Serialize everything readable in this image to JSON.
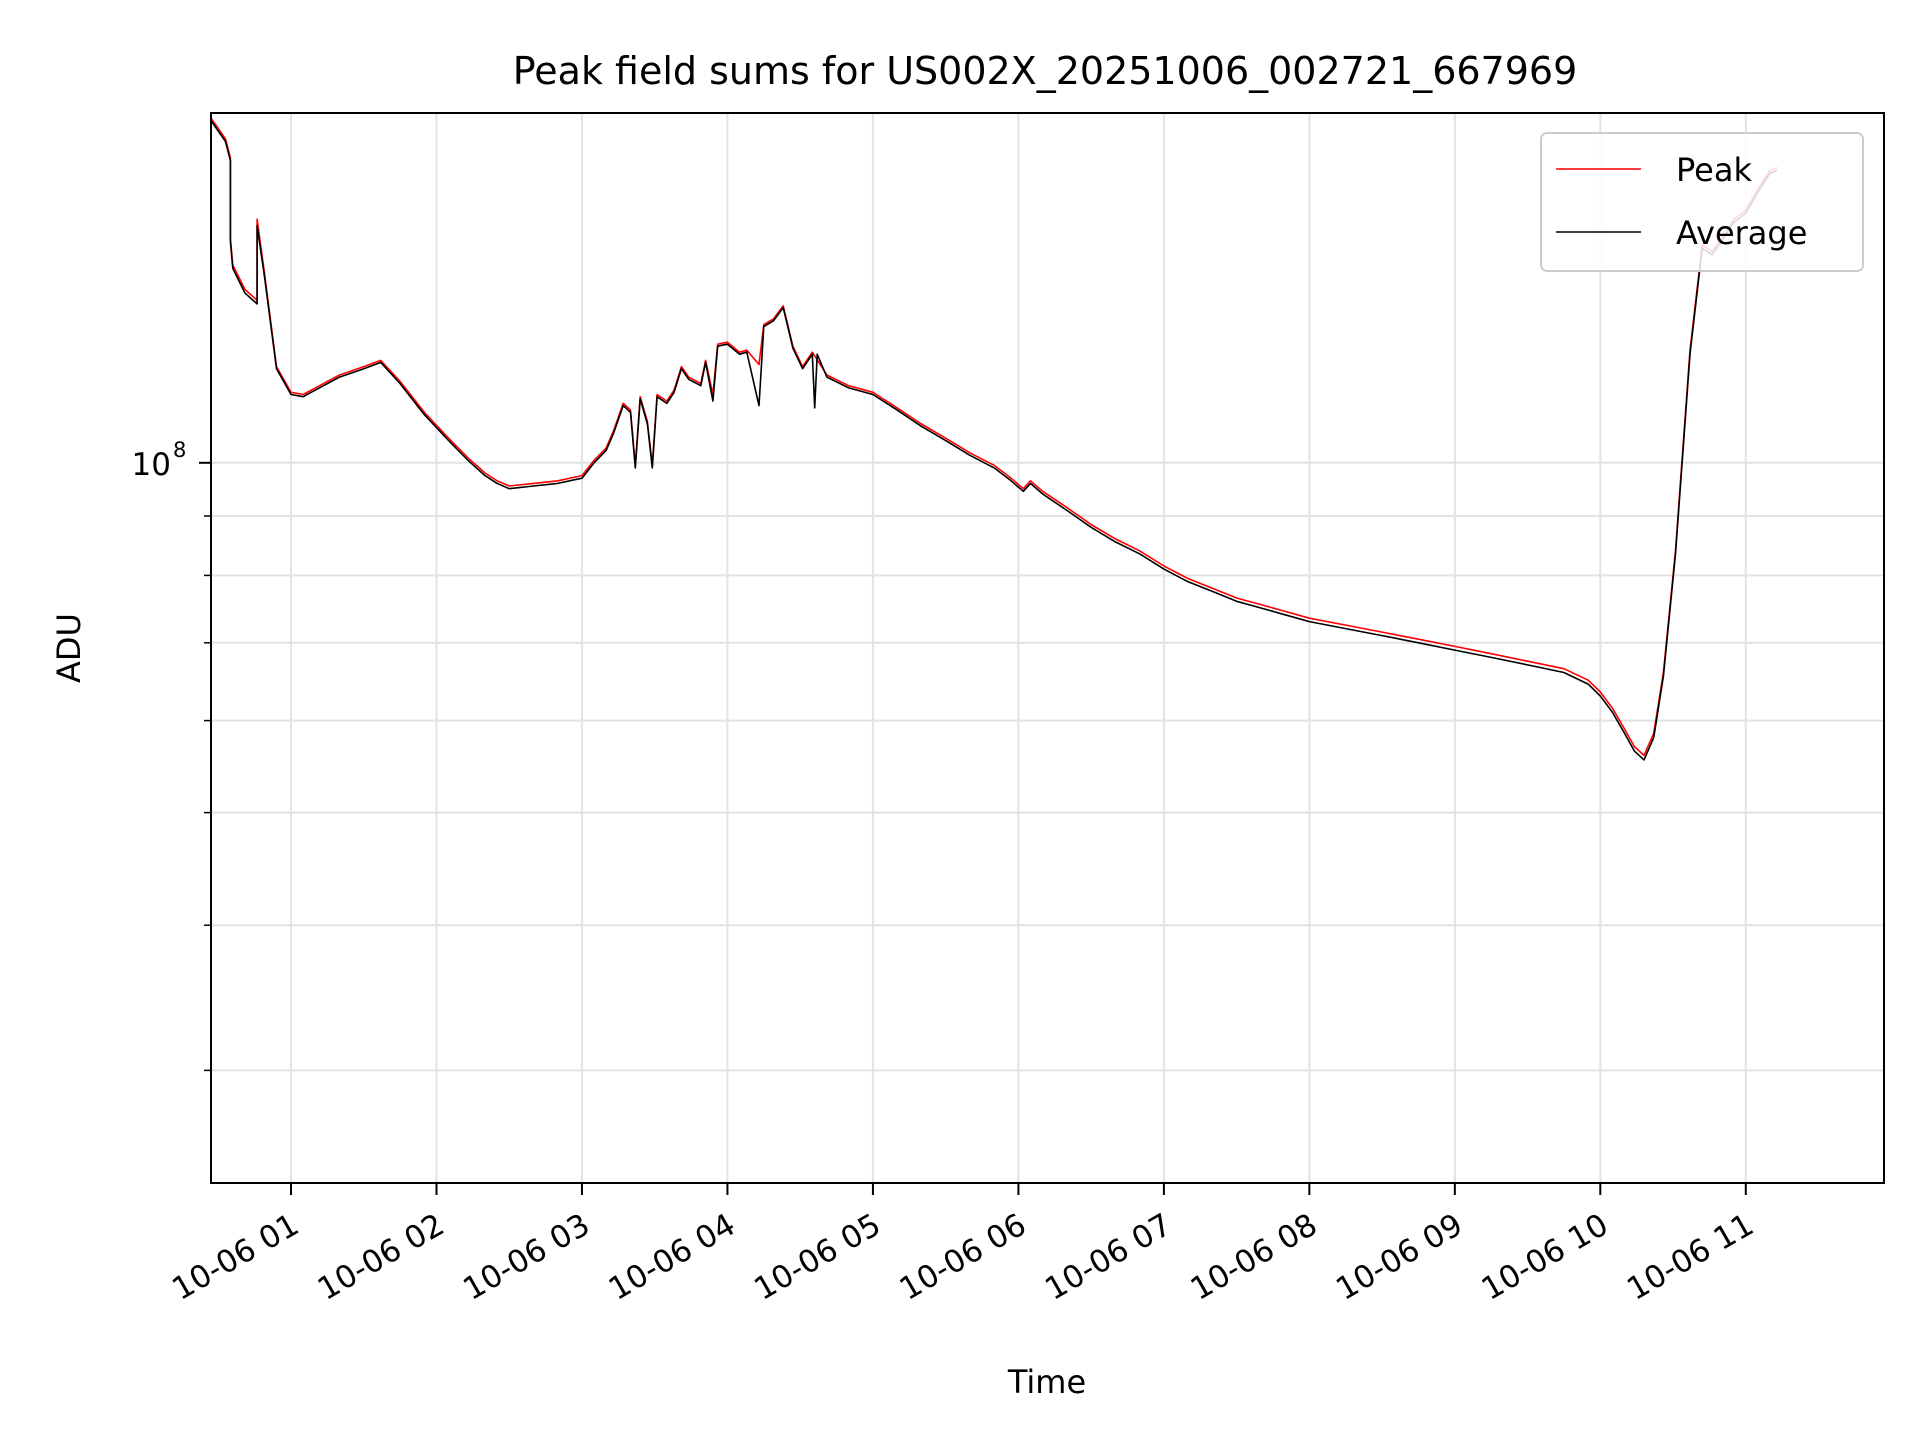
{
  "chart_data": {
    "type": "line",
    "title": "Peak field sums for US002X_20251006_002721_667969",
    "xlabel": "Time",
    "ylabel": "ADU",
    "y_scale": "log",
    "grid": true,
    "legend_position": "top-right",
    "x_range": [
      "2025-10-06 00:27",
      "2025-10-06 11:57"
    ],
    "y_range": [
      24000000,
      200000000
    ],
    "x_ticks": [
      {
        "value": "2025-10-06 01:00",
        "label": "10-06 01"
      },
      {
        "value": "2025-10-06 02:00",
        "label": "10-06 02"
      },
      {
        "value": "2025-10-06 03:00",
        "label": "10-06 03"
      },
      {
        "value": "2025-10-06 04:00",
        "label": "10-06 04"
      },
      {
        "value": "2025-10-06 05:00",
        "label": "10-06 05"
      },
      {
        "value": "2025-10-06 06:00",
        "label": "10-06 06"
      },
      {
        "value": "2025-10-06 07:00",
        "label": "10-06 07"
      },
      {
        "value": "2025-10-06 08:00",
        "label": "10-06 08"
      },
      {
        "value": "2025-10-06 09:00",
        "label": "10-06 09"
      },
      {
        "value": "2025-10-06 10:00",
        "label": "10-06 10"
      },
      {
        "value": "2025-10-06 11:00",
        "label": "10-06 11"
      }
    ],
    "y_major_ticks": [
      {
        "value": 100000000,
        "label_base": "10",
        "label_exp": "8"
      }
    ],
    "y_minor_ticks": [
      30000000,
      40000000,
      50000000,
      60000000,
      70000000,
      80000000,
      90000000
    ],
    "series": [
      {
        "name": "Peak",
        "color": "#ff0000",
        "points": [
          [
            "2025-10-06 00:27",
            198000000
          ],
          [
            "2025-10-06 00:33",
            190000000
          ],
          [
            "2025-10-06 00:35",
            183000000
          ],
          [
            "2025-10-06 00:35",
            156000000
          ],
          [
            "2025-10-06 00:36",
            148000000
          ],
          [
            "2025-10-06 00:41",
            141000000
          ],
          [
            "2025-10-06 00:46",
            138000000
          ],
          [
            "2025-10-06 00:46",
            162000000
          ],
          [
            "2025-10-06 00:49",
            146000000
          ],
          [
            "2025-10-06 00:54",
            121000000
          ],
          [
            "2025-10-06 01:00",
            115000000
          ],
          [
            "2025-10-06 01:05",
            114500000
          ],
          [
            "2025-10-06 01:10",
            116000000
          ],
          [
            "2025-10-06 01:20",
            119000000
          ],
          [
            "2025-10-06 01:30",
            121000000
          ],
          [
            "2025-10-06 01:37",
            122500000
          ],
          [
            "2025-10-06 01:45",
            117500000
          ],
          [
            "2025-10-06 01:55",
            110500000
          ],
          [
            "2025-10-06 02:05",
            105000000
          ],
          [
            "2025-10-06 02:13",
            101000000
          ],
          [
            "2025-10-06 02:20",
            98000000
          ],
          [
            "2025-10-06 02:25",
            96500000
          ],
          [
            "2025-10-06 02:30",
            95500000
          ],
          [
            "2025-10-06 02:40",
            96000000
          ],
          [
            "2025-10-06 02:50",
            96500000
          ],
          [
            "2025-10-06 03:00",
            97500000
          ],
          [
            "2025-10-06 03:05",
            100500000
          ],
          [
            "2025-10-06 03:10",
            103000000
          ],
          [
            "2025-10-06 03:13",
            106500000
          ],
          [
            "2025-10-06 03:17",
            112500000
          ],
          [
            "2025-10-06 03:20",
            111000000
          ],
          [
            "2025-10-06 03:22",
            99500000
          ],
          [
            "2025-10-06 03:24",
            114000000
          ],
          [
            "2025-10-06 03:27",
            108500000
          ],
          [
            "2025-10-06 03:29",
            99500000
          ],
          [
            "2025-10-06 03:31",
            114500000
          ],
          [
            "2025-10-06 03:35",
            113000000
          ],
          [
            "2025-10-06 03:38",
            115500000
          ],
          [
            "2025-10-06 03:41",
            121000000
          ],
          [
            "2025-10-06 03:44",
            118500000
          ],
          [
            "2025-10-06 03:49",
            117000000
          ],
          [
            "2025-10-06 03:51",
            122500000
          ],
          [
            "2025-10-06 03:54",
            114500000
          ],
          [
            "2025-10-06 03:56",
            126500000
          ],
          [
            "2025-10-06 04:00",
            127000000
          ],
          [
            "2025-10-06 04:05",
            124500000
          ],
          [
            "2025-10-06 04:08",
            125000000
          ],
          [
            "2025-10-06 04:13",
            121500000
          ],
          [
            "2025-10-06 04:15",
            131500000
          ],
          [
            "2025-10-06 04:19",
            133000000
          ],
          [
            "2025-10-06 04:23",
            136500000
          ],
          [
            "2025-10-06 04:27",
            126000000
          ],
          [
            "2025-10-06 04:31",
            121000000
          ],
          [
            "2025-10-06 04:35",
            124500000
          ],
          [
            "2025-10-06 04:41",
            119000000
          ],
          [
            "2025-10-06 04:50",
            116500000
          ],
          [
            "2025-10-06 05:00",
            115000000
          ],
          [
            "2025-10-06 05:10",
            111500000
          ],
          [
            "2025-10-06 05:20",
            108000000
          ],
          [
            "2025-10-06 05:30",
            105000000
          ],
          [
            "2025-10-06 05:40",
            102000000
          ],
          [
            "2025-10-06 05:50",
            99500000
          ],
          [
            "2025-10-06 05:57",
            97000000
          ],
          [
            "2025-10-06 06:02",
            95000000
          ],
          [
            "2025-10-06 06:05",
            96500000
          ],
          [
            "2025-10-06 06:10",
            94500000
          ],
          [
            "2025-10-06 06:20",
            91500000
          ],
          [
            "2025-10-06 06:30",
            88500000
          ],
          [
            "2025-10-06 06:40",
            86000000
          ],
          [
            "2025-10-06 06:50",
            84000000
          ],
          [
            "2025-10-06 07:00",
            81500000
          ],
          [
            "2025-10-06 07:10",
            79500000
          ],
          [
            "2025-10-06 07:20",
            78000000
          ],
          [
            "2025-10-06 07:30",
            76500000
          ],
          [
            "2025-10-06 07:40",
            75500000
          ],
          [
            "2025-10-06 07:50",
            74500000
          ],
          [
            "2025-10-06 08:00",
            73500000
          ],
          [
            "2025-10-06 08:15",
            72500000
          ],
          [
            "2025-10-06 08:30",
            71500000
          ],
          [
            "2025-10-06 08:45",
            70500000
          ],
          [
            "2025-10-06 09:00",
            69500000
          ],
          [
            "2025-10-06 09:15",
            68500000
          ],
          [
            "2025-10-06 09:30",
            67500000
          ],
          [
            "2025-10-06 09:45",
            66500000
          ],
          [
            "2025-10-06 09:55",
            65000000
          ],
          [
            "2025-10-06 10:00",
            63500000
          ],
          [
            "2025-10-06 10:05",
            61500000
          ],
          [
            "2025-10-06 10:10",
            59000000
          ],
          [
            "2025-10-06 10:14",
            57000000
          ],
          [
            "2025-10-06 10:18",
            56000000
          ],
          [
            "2025-10-06 10:22",
            58500000
          ],
          [
            "2025-10-06 10:26",
            66000000
          ],
          [
            "2025-10-06 10:31",
            84000000
          ],
          [
            "2025-10-06 10:37",
            125000000
          ],
          [
            "2025-10-06 10:42",
            154000000
          ],
          [
            "2025-10-06 10:46",
            152000000
          ],
          [
            "2025-10-06 10:50",
            156000000
          ],
          [
            "2025-10-06 10:55",
            162000000
          ],
          [
            "2025-10-06 11:00",
            165000000
          ],
          [
            "2025-10-06 11:05",
            172000000
          ],
          [
            "2025-10-06 11:10",
            178500000
          ],
          [
            "2025-10-06 11:13",
            179500000
          ]
        ]
      },
      {
        "name": "Average",
        "color": "#000000",
        "points": [
          [
            "2025-10-06 00:27",
            197000000
          ],
          [
            "2025-10-06 00:33",
            189000000
          ],
          [
            "2025-10-06 00:35",
            182000000
          ],
          [
            "2025-10-06 00:35",
            155000000
          ],
          [
            "2025-10-06 00:36",
            147000000
          ],
          [
            "2025-10-06 00:41",
            140000000
          ],
          [
            "2025-10-06 00:46",
            137000000
          ],
          [
            "2025-10-06 00:46",
            160000000
          ],
          [
            "2025-10-06 00:49",
            145000000
          ],
          [
            "2025-10-06 00:54",
            120500000
          ],
          [
            "2025-10-06 01:00",
            114500000
          ],
          [
            "2025-10-06 01:05",
            114000000
          ],
          [
            "2025-10-06 01:10",
            115500000
          ],
          [
            "2025-10-06 01:20",
            118500000
          ],
          [
            "2025-10-06 01:30",
            120500000
          ],
          [
            "2025-10-06 01:37",
            122000000
          ],
          [
            "2025-10-06 01:45",
            117000000
          ],
          [
            "2025-10-06 01:55",
            110000000
          ],
          [
            "2025-10-06 02:05",
            104500000
          ],
          [
            "2025-10-06 02:13",
            100500000
          ],
          [
            "2025-10-06 02:20",
            97500000
          ],
          [
            "2025-10-06 02:25",
            96000000
          ],
          [
            "2025-10-06 02:30",
            95000000
          ],
          [
            "2025-10-06 02:40",
            95500000
          ],
          [
            "2025-10-06 02:50",
            96000000
          ],
          [
            "2025-10-06 03:00",
            97000000
          ],
          [
            "2025-10-06 03:05",
            100000000
          ],
          [
            "2025-10-06 03:10",
            102500000
          ],
          [
            "2025-10-06 03:13",
            106000000
          ],
          [
            "2025-10-06 03:17",
            112000000
          ],
          [
            "2025-10-06 03:20",
            110500000
          ],
          [
            "2025-10-06 03:22",
            99000000
          ],
          [
            "2025-10-06 03:24",
            113500000
          ],
          [
            "2025-10-06 03:27",
            108000000
          ],
          [
            "2025-10-06 03:29",
            99000000
          ],
          [
            "2025-10-06 03:31",
            114000000
          ],
          [
            "2025-10-06 03:35",
            112500000
          ],
          [
            "2025-10-06 03:38",
            115000000
          ],
          [
            "2025-10-06 03:41",
            120500000
          ],
          [
            "2025-10-06 03:44",
            118000000
          ],
          [
            "2025-10-06 03:49",
            116500000
          ],
          [
            "2025-10-06 03:51",
            122000000
          ],
          [
            "2025-10-06 03:54",
            113000000
          ],
          [
            "2025-10-06 03:56",
            126000000
          ],
          [
            "2025-10-06 04:00",
            126500000
          ],
          [
            "2025-10-06 04:05",
            124000000
          ],
          [
            "2025-10-06 04:08",
            124500000
          ],
          [
            "2025-10-06 04:13",
            112000000
          ],
          [
            "2025-10-06 04:15",
            131000000
          ],
          [
            "2025-10-06 04:19",
            132500000
          ],
          [
            "2025-10-06 04:23",
            136000000
          ],
          [
            "2025-10-06 04:27",
            125500000
          ],
          [
            "2025-10-06 04:31",
            120500000
          ],
          [
            "2025-10-06 04:35",
            124000000
          ],
          [
            "2025-10-06 04:36",
            111500000
          ],
          [
            "2025-10-06 04:37",
            124000000
          ],
          [
            "2025-10-06 04:41",
            118500000
          ],
          [
            "2025-10-06 04:50",
            116000000
          ],
          [
            "2025-10-06 05:00",
            114500000
          ],
          [
            "2025-10-06 05:10",
            111000000
          ],
          [
            "2025-10-06 05:20",
            107500000
          ],
          [
            "2025-10-06 05:30",
            104500000
          ],
          [
            "2025-10-06 05:40",
            101500000
          ],
          [
            "2025-10-06 05:50",
            99000000
          ],
          [
            "2025-10-06 05:57",
            96500000
          ],
          [
            "2025-10-06 06:02",
            94500000
          ],
          [
            "2025-10-06 06:05",
            96000000
          ],
          [
            "2025-10-06 06:10",
            94000000
          ],
          [
            "2025-10-06 06:20",
            91000000
          ],
          [
            "2025-10-06 06:30",
            88000000
          ],
          [
            "2025-10-06 06:40",
            85500000
          ],
          [
            "2025-10-06 06:50",
            83500000
          ],
          [
            "2025-10-06 07:00",
            81000000
          ],
          [
            "2025-10-06 07:10",
            79000000
          ],
          [
            "2025-10-06 07:20",
            77500000
          ],
          [
            "2025-10-06 07:30",
            76000000
          ],
          [
            "2025-10-06 07:40",
            75000000
          ],
          [
            "2025-10-06 07:50",
            74000000
          ],
          [
            "2025-10-06 08:00",
            73000000
          ],
          [
            "2025-10-06 08:15",
            72000000
          ],
          [
            "2025-10-06 08:30",
            71000000
          ],
          [
            "2025-10-06 08:45",
            70000000
          ],
          [
            "2025-10-06 09:00",
            69000000
          ],
          [
            "2025-10-06 09:15",
            68000000
          ],
          [
            "2025-10-06 09:30",
            67000000
          ],
          [
            "2025-10-06 09:45",
            66000000
          ],
          [
            "2025-10-06 09:55",
            64500000
          ],
          [
            "2025-10-06 10:00",
            63000000
          ],
          [
            "2025-10-06 10:05",
            61000000
          ],
          [
            "2025-10-06 10:10",
            58500000
          ],
          [
            "2025-10-06 10:14",
            56500000
          ],
          [
            "2025-10-06 10:18",
            55500000
          ],
          [
            "2025-10-06 10:22",
            58000000
          ],
          [
            "2025-10-06 10:26",
            65500000
          ],
          [
            "2025-10-06 10:31",
            83500000
          ],
          [
            "2025-10-06 10:37",
            124000000
          ],
          [
            "2025-10-06 10:42",
            153000000
          ],
          [
            "2025-10-06 10:46",
            151000000
          ],
          [
            "2025-10-06 10:50",
            155000000
          ],
          [
            "2025-10-06 10:55",
            161000000
          ],
          [
            "2025-10-06 11:00",
            164000000
          ],
          [
            "2025-10-06 11:05",
            171000000
          ],
          [
            "2025-10-06 11:10",
            177500000
          ],
          [
            "2025-10-06 11:13",
            178500000
          ]
        ]
      }
    ]
  }
}
